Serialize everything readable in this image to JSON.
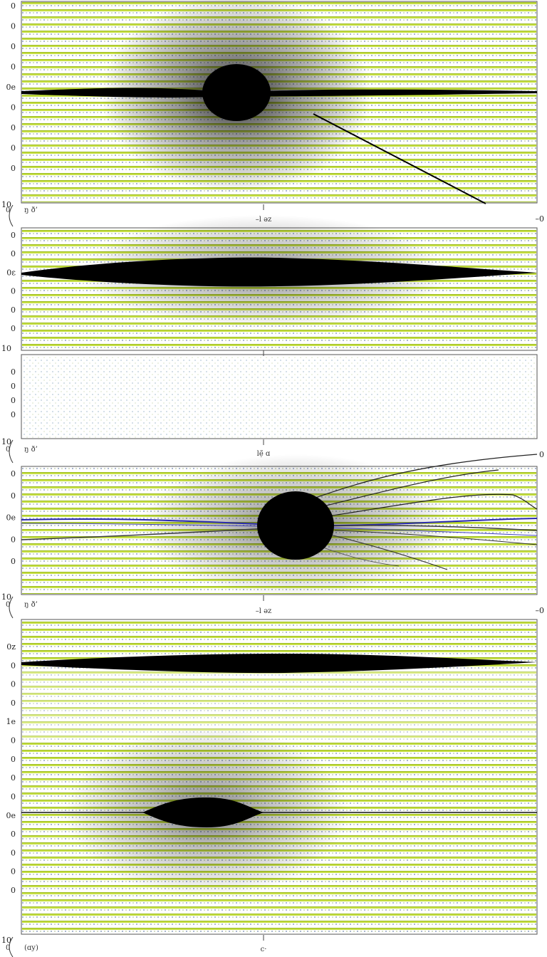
{
  "colors": {
    "stripe": "#b9d82e",
    "stripe_dark": "#8fb21a",
    "dot": "#2a4a8a",
    "blob": "#000000",
    "blue_line": "#2a2ab0",
    "frame": "#555555"
  },
  "chart_data": [
    {
      "type": "heatmap",
      "panel": 1,
      "ytick_labels": [
        "0",
        "0",
        "0",
        "0",
        "0e",
        "0",
        "0",
        "0",
        "0"
      ],
      "bottom_left": "10",
      "corner_labels": [
        "0",
        "ŋ ð’"
      ],
      "xlabel": "–l ǝz",
      "right_label": "–0"
    },
    {
      "type": "heatmap",
      "panel": 2,
      "ytick_labels": [
        "0",
        "0",
        "0ɛ",
        "0",
        "0",
        "0"
      ],
      "bottom_left": "10"
    },
    {
      "type": "heatmap",
      "panel": 3,
      "ytick_labels": [
        "0",
        "0",
        "0",
        "0"
      ],
      "bottom_left": "10",
      "corner_labels": [
        "0",
        "ŋ ð’"
      ],
      "xlabel": "lẹ̃ ɑ",
      "right_label": "0"
    },
    {
      "type": "heatmap",
      "panel": 4,
      "ytick_labels": [
        "0",
        "0",
        "0e",
        "0",
        "0"
      ],
      "bottom_left": "10",
      "corner_labels": [
        "0",
        "ŋ ð’"
      ],
      "xlabel": "–l ǝz",
      "right_label": "–0"
    },
    {
      "type": "heatmap",
      "panel": 5,
      "ytick_labels": [
        "0z",
        "0",
        "0",
        "0",
        "1e",
        "0",
        "0",
        "0",
        "0",
        "0e",
        "0",
        "0",
        "0",
        "0"
      ],
      "bottom_left": "10",
      "corner_labels": [
        "0",
        "(ɑy)"
      ],
      "xlabel": "c·"
    }
  ]
}
